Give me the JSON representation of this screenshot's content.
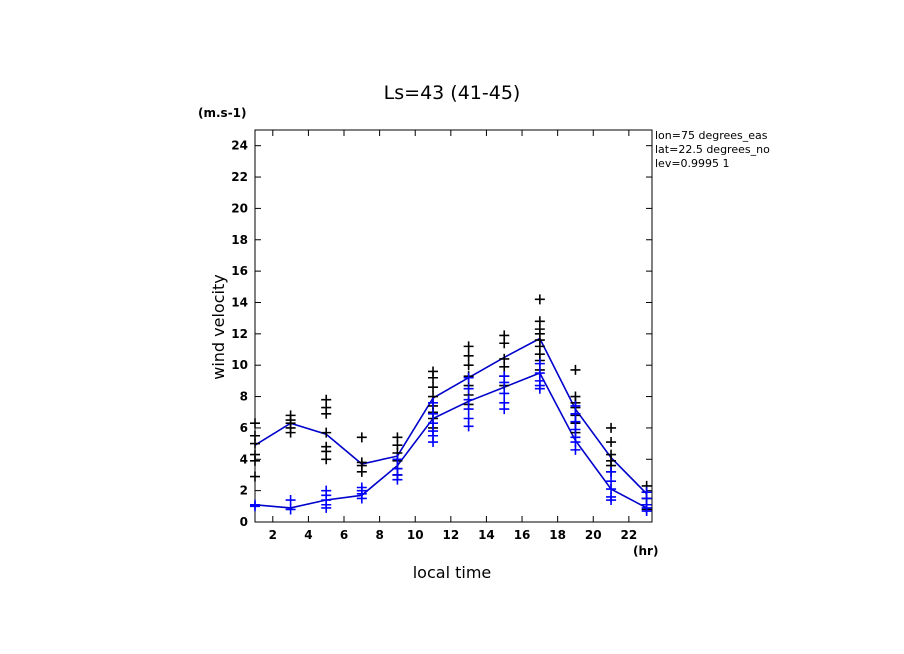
{
  "chart_data": {
    "type": "scatter",
    "title": "Ls=43 (41-45)",
    "xlabel": "local time",
    "ylabel": "wind velocity",
    "x_unit": "(hr)",
    "y_unit": "(m.s-1)",
    "xlim": [
      1,
      23.3
    ],
    "ylim": [
      0,
      25
    ],
    "xticks": [
      2,
      4,
      6,
      8,
      10,
      12,
      14,
      16,
      18,
      20,
      22
    ],
    "yticks": [
      0,
      2,
      4,
      6,
      8,
      10,
      12,
      14,
      16,
      18,
      20,
      22,
      24
    ],
    "info": [
      "lon=75 degrees_eas",
      "lat=22.5 degrees_no",
      "lev=0.9995 1"
    ],
    "grid": false,
    "series": [
      {
        "color": "#000000",
        "mode": "markers",
        "points": [
          [
            1,
            6.3
          ],
          [
            1,
            5.5
          ],
          [
            1,
            5.0
          ],
          [
            1,
            4.3
          ],
          [
            1,
            3.9
          ],
          [
            1,
            2.9
          ],
          [
            3,
            6.8
          ],
          [
            3,
            6.5
          ],
          [
            3,
            6.3
          ],
          [
            3,
            6.0
          ],
          [
            3,
            5.7
          ],
          [
            5,
            7.8
          ],
          [
            5,
            7.3
          ],
          [
            5,
            6.9
          ],
          [
            5,
            5.7
          ],
          [
            5,
            4.8
          ],
          [
            5,
            4.5
          ],
          [
            5,
            4.0
          ],
          [
            7,
            5.4
          ],
          [
            7,
            3.8
          ],
          [
            7,
            3.6
          ],
          [
            7,
            3.2
          ],
          [
            9,
            5.4
          ],
          [
            9,
            4.9
          ],
          [
            9,
            4.4
          ],
          [
            9,
            3.9
          ],
          [
            9,
            3.4
          ],
          [
            9,
            3.0
          ],
          [
            11,
            9.6
          ],
          [
            11,
            9.2
          ],
          [
            11,
            8.6
          ],
          [
            11,
            8.0
          ],
          [
            11,
            7.4
          ],
          [
            11,
            7.0
          ],
          [
            11,
            6.6
          ],
          [
            11,
            6.0
          ],
          [
            13,
            11.2
          ],
          [
            13,
            10.6
          ],
          [
            13,
            10.0
          ],
          [
            13,
            9.3
          ],
          [
            13,
            8.7
          ],
          [
            13,
            8.1
          ],
          [
            13,
            7.5
          ],
          [
            15,
            11.9
          ],
          [
            15,
            11.4
          ],
          [
            15,
            10.4
          ],
          [
            15,
            9.9
          ],
          [
            15,
            9.3
          ],
          [
            15,
            8.7
          ],
          [
            17,
            14.2
          ],
          [
            17,
            12.8
          ],
          [
            17,
            12.3
          ],
          [
            17,
            12.0
          ],
          [
            17,
            11.6
          ],
          [
            17,
            11.2
          ],
          [
            17,
            10.7
          ],
          [
            17,
            10.3
          ],
          [
            17,
            9.7
          ],
          [
            19,
            9.7
          ],
          [
            19,
            8.0
          ],
          [
            19,
            7.6
          ],
          [
            19,
            7.3
          ],
          [
            19,
            6.8
          ],
          [
            19,
            6.3
          ],
          [
            19,
            5.7
          ],
          [
            21,
            6.0
          ],
          [
            21,
            5.1
          ],
          [
            21,
            4.3
          ],
          [
            21,
            3.9
          ],
          [
            21,
            3.6
          ],
          [
            21,
            3.2
          ],
          [
            23,
            2.3
          ],
          [
            23,
            1.9
          ],
          [
            23,
            1.5
          ],
          [
            23,
            1.1
          ],
          [
            23,
            0.8
          ]
        ]
      },
      {
        "color": "#0000ff",
        "mode": "markers",
        "points": [
          [
            1,
            1.1
          ],
          [
            1,
            1.0
          ],
          [
            3,
            1.4
          ],
          [
            3,
            0.8
          ],
          [
            5,
            2.0
          ],
          [
            5,
            1.7
          ],
          [
            5,
            1.4
          ],
          [
            5,
            1.1
          ],
          [
            5,
            0.9
          ],
          [
            7,
            2.2
          ],
          [
            7,
            2.0
          ],
          [
            7,
            1.8
          ],
          [
            7,
            1.5
          ],
          [
            9,
            4.0
          ],
          [
            9,
            3.4
          ],
          [
            9,
            3.0
          ],
          [
            9,
            2.7
          ],
          [
            11,
            7.6
          ],
          [
            11,
            6.9
          ],
          [
            11,
            6.3
          ],
          [
            11,
            5.8
          ],
          [
            11,
            5.5
          ],
          [
            11,
            5.1
          ],
          [
            13,
            9.2
          ],
          [
            13,
            8.5
          ],
          [
            13,
            7.8
          ],
          [
            13,
            7.2
          ],
          [
            13,
            6.6
          ],
          [
            13,
            6.1
          ],
          [
            15,
            9.3
          ],
          [
            15,
            8.9
          ],
          [
            15,
            8.2
          ],
          [
            15,
            7.6
          ],
          [
            15,
            7.2
          ],
          [
            17,
            10.1
          ],
          [
            17,
            9.5
          ],
          [
            17,
            9.0
          ],
          [
            17,
            8.7
          ],
          [
            17,
            8.5
          ],
          [
            19,
            7.4
          ],
          [
            19,
            6.9
          ],
          [
            19,
            6.4
          ],
          [
            19,
            5.9
          ],
          [
            19,
            5.4
          ],
          [
            19,
            5.1
          ],
          [
            19,
            4.6
          ],
          [
            21,
            3.2
          ],
          [
            21,
            2.6
          ],
          [
            21,
            2.1
          ],
          [
            21,
            1.6
          ],
          [
            21,
            1.4
          ],
          [
            23,
            1.9
          ],
          [
            23,
            1.5
          ],
          [
            23,
            1.1
          ],
          [
            23,
            0.9
          ],
          [
            23,
            0.7
          ]
        ]
      },
      {
        "color": "#0000cc",
        "mode": "line",
        "points": [
          [
            1,
            4.9
          ],
          [
            3,
            6.3
          ],
          [
            5,
            5.6
          ],
          [
            7,
            3.7
          ],
          [
            9,
            4.2
          ],
          [
            11,
            7.9
          ],
          [
            13,
            9.2
          ],
          [
            15,
            10.5
          ],
          [
            17,
            11.7
          ],
          [
            19,
            7.2
          ],
          [
            21,
            4.1
          ],
          [
            23,
            1.8
          ]
        ]
      },
      {
        "color": "#0000cc",
        "mode": "line",
        "points": [
          [
            1,
            1.1
          ],
          [
            3,
            0.9
          ],
          [
            5,
            1.4
          ],
          [
            7,
            1.7
          ],
          [
            9,
            3.6
          ],
          [
            11,
            6.6
          ],
          [
            13,
            7.7
          ],
          [
            15,
            8.6
          ],
          [
            17,
            9.5
          ],
          [
            19,
            5.2
          ],
          [
            21,
            2.1
          ],
          [
            23,
            0.9
          ]
        ]
      }
    ]
  }
}
